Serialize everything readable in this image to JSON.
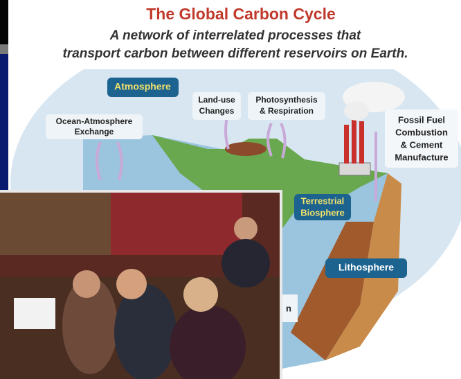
{
  "header": {
    "title": "The Global Carbon Cycle",
    "subtitle": [
      "A network of interrelated processes that",
      "transport carbon between different reservoirs on Earth."
    ]
  },
  "labels": {
    "atmosphere": [
      "Atmosphere"
    ],
    "land_use": [
      "Land-use",
      "Changes"
    ],
    "photosynthesis": [
      "Photosynthesis",
      "& Respiration"
    ],
    "ocean_exchange": [
      "Ocean-Atmosphere",
      "Exchange"
    ],
    "fossil_fuel": [
      "Fossil Fuel",
      "Combustion",
      "& Cement",
      "Manufacture"
    ],
    "terrestrial": [
      "Terrestrial",
      "Biosphere"
    ],
    "lithosphere": [
      "Lithosphere"
    ],
    "cropped": [
      "n"
    ]
  }
}
